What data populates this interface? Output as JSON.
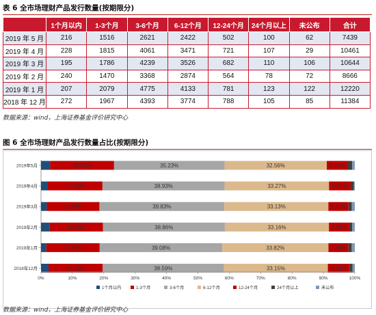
{
  "table": {
    "title": "表 6 全市场理财产品发行数量(按期限分)",
    "headers": [
      "",
      "1个月以内",
      "1-3个月",
      "3-6个月",
      "6-12个月",
      "12-24个月",
      "24个月以上",
      "未公布",
      "合计"
    ],
    "rows": [
      [
        "2019 年 5 月",
        "216",
        "1516",
        "2621",
        "2422",
        "502",
        "100",
        "62",
        "7439"
      ],
      [
        "2019 年 4 月",
        "228",
        "1815",
        "4061",
        "3471",
        "721",
        "107",
        "29",
        "10461"
      ],
      [
        "2019 年 3 月",
        "195",
        "1786",
        "4239",
        "3526",
        "682",
        "110",
        "106",
        "10644"
      ],
      [
        "2019 年 2 月",
        "240",
        "1470",
        "3368",
        "2874",
        "564",
        "78",
        "72",
        "8666"
      ],
      [
        "2019 年 1 月",
        "207",
        "2079",
        "4775",
        "4133",
        "781",
        "123",
        "122",
        "12220"
      ],
      [
        "2018 年 12 月",
        "272",
        "1967",
        "4393",
        "3774",
        "788",
        "105",
        "85",
        "11384"
      ]
    ],
    "source": "数据来源：wind，上海证券基金评价研究中心"
  },
  "figure": {
    "title": "图 6 全市场理财产品发行数量占比(按期限分)",
    "source": "数据来源：wind，上海证券基金评价研究中心"
  },
  "chart_data": {
    "type": "bar",
    "orientation": "horizontal",
    "stacked": true,
    "percent": true,
    "categories": [
      "2019年5月",
      "2019年4月",
      "2019年3月",
      "2019年2月",
      "2019年1月",
      "2018年12月"
    ],
    "series": [
      {
        "name": "1个月以内",
        "color": "#1f4e79",
        "values": [
          2.9,
          2.18,
          1.83,
          2.77,
          1.69,
          2.39
        ],
        "labels": [
          "",
          "",
          "",
          "",
          "",
          ""
        ]
      },
      {
        "name": "1-3个月",
        "color": "#c00000",
        "values": [
          20.38,
          17.4,
          16.78,
          16.96,
          17.01,
          17.28
        ],
        "labels": [
          "20.38%",
          "17.40%",
          "16.78%",
          "16.96%",
          "17.01%",
          "17.28%"
        ]
      },
      {
        "name": "3-6个月",
        "color": "#a6a6a6",
        "values": [
          35.23,
          38.93,
          39.83,
          38.86,
          39.08,
          38.59
        ],
        "labels": [
          "35.23%",
          "38.93%",
          "39.83%",
          "38.86%",
          "39.08%",
          "38.59%"
        ]
      },
      {
        "name": "6-12个月",
        "color": "#dcb98c",
        "values": [
          32.56,
          33.27,
          33.13,
          33.16,
          33.82,
          33.15
        ],
        "labels": [
          "32.56%",
          "33.27%",
          "33.13%",
          "33.16%",
          "33.82%",
          "33.15%"
        ]
      },
      {
        "name": "12-24个月",
        "color": "#c00000",
        "values": [
          6.75,
          6.91,
          6.41,
          6.51,
          6.39,
          6.92
        ],
        "labels": [
          "6.75%",
          "6.91%",
          "6.41%",
          "6.51%",
          "6.39%",
          "6.92%"
        ]
      },
      {
        "name": "24个月以上",
        "color": "#404040",
        "values": [
          1.34,
          1.02,
          1.03,
          0.9,
          1.01,
          0.92
        ],
        "labels": [
          "",
          "",
          "",
          "",
          "",
          ""
        ]
      },
      {
        "name": "未公布",
        "color": "#8497b0",
        "values": [
          0.83,
          0.28,
          1.0,
          0.83,
          1.0,
          0.75
        ],
        "labels": [
          "",
          "",
          "",
          "",
          "",
          ""
        ]
      }
    ],
    "xlim": [
      0,
      100
    ],
    "xticks": [
      "0%",
      "10%",
      "20%",
      "30%",
      "40%",
      "50%",
      "60%",
      "70%",
      "80%",
      "90%",
      "100%"
    ],
    "legend_position": "bottom",
    "grid": false
  }
}
